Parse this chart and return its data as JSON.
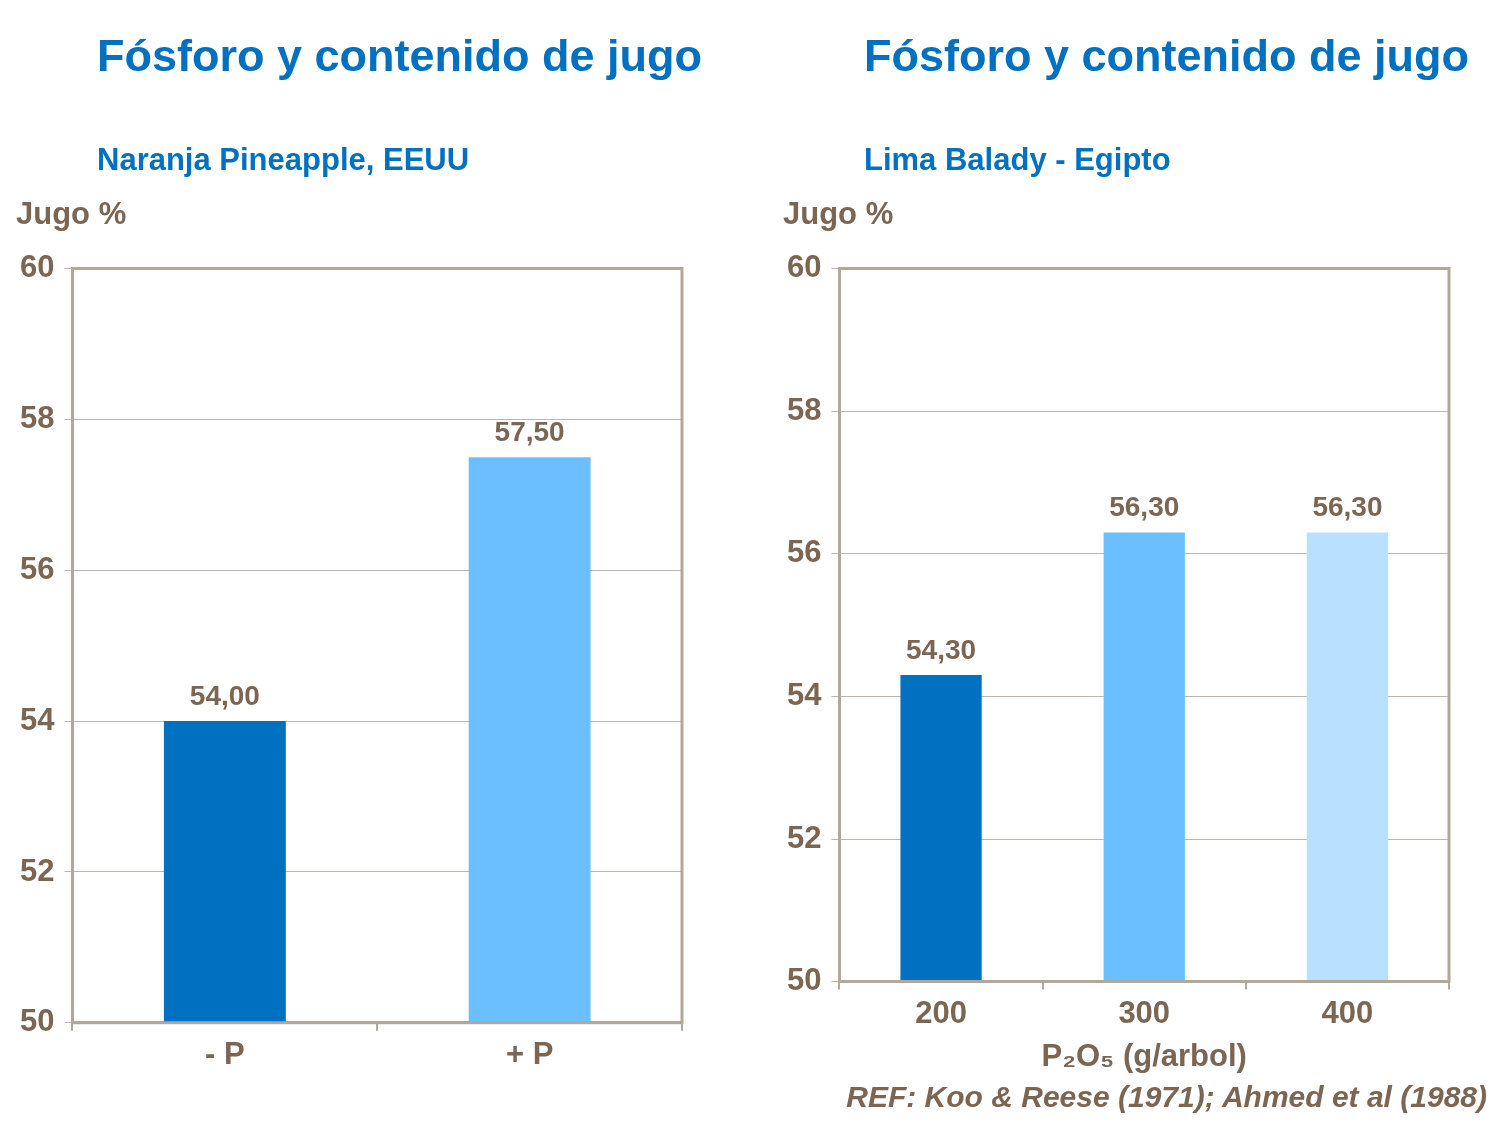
{
  "chart_data": [
    {
      "type": "bar",
      "title": "Fósforo y contenido de jugo",
      "subtitle": "Naranja Pineapple, EEUU",
      "ylabel": "Jugo %",
      "categories": [
        "- P",
        "+ P"
      ],
      "values": [
        54.0,
        57.5
      ],
      "colors": [
        "#0070c0",
        "#6bbfff"
      ],
      "value_labels": [
        "54,00",
        "57,50"
      ],
      "ylim": [
        50,
        60
      ],
      "yticks": [
        50,
        52,
        54,
        56,
        58,
        60
      ],
      "grid": "y",
      "legend": false
    },
    {
      "type": "bar",
      "title": "Fósforo y contenido de jugo",
      "subtitle": "Lima Balady - Egipto",
      "ylabel": "Jugo %",
      "xlabel": "P₂O₅ (g/arbol)",
      "categories": [
        "200",
        "300",
        "400"
      ],
      "values": [
        54.3,
        56.3,
        56.3
      ],
      "colors": [
        "#0070c0",
        "#6bbfff",
        "#b9e0ff"
      ],
      "value_labels": [
        "54,30",
        "56,30",
        "56,30"
      ],
      "ylim": [
        50,
        60
      ],
      "yticks": [
        50,
        52,
        54,
        56,
        58,
        60
      ],
      "grid": "y",
      "legend": false,
      "annotations": [
        "REF: Koo & Reese (1971); Ahmed et al (1988)"
      ]
    }
  ]
}
